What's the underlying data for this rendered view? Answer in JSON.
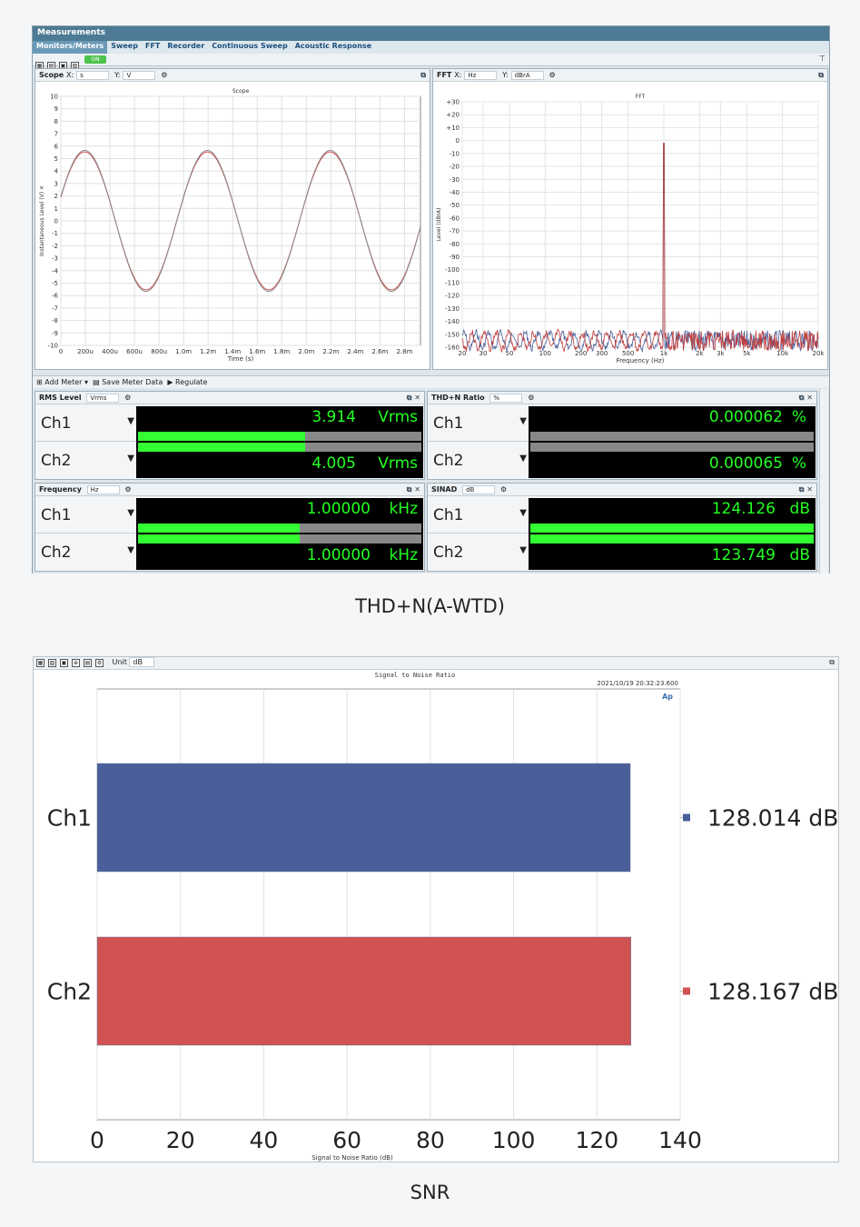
{
  "app": {
    "title": "Measurements",
    "nav_tabs": [
      "Monitors/Meters",
      "Sweep",
      "FFT",
      "Recorder",
      "Continuous Sweep",
      "Acoustic Response"
    ],
    "on_label": "ON"
  },
  "scope": {
    "title": "Scope",
    "x_label": "X:",
    "x_unit": "s",
    "y_label": "Y:",
    "y_unit": "V",
    "chart_title": "Scope",
    "ylabel": "Instantaneous Level (V) ✕",
    "xlabel": "Time (s)",
    "y_ticks": [
      "10",
      "9",
      "8",
      "7",
      "6",
      "5",
      "4",
      "3",
      "2",
      "1",
      "0",
      "-1",
      "-2",
      "-3",
      "-4",
      "-5",
      "-6",
      "-7",
      "-8",
      "-9",
      "-10"
    ],
    "x_ticks": [
      "0",
      "200u",
      "400u",
      "600u",
      "800u",
      "1.0m",
      "1.2m",
      "1.4m",
      "1.6m",
      "1.8m",
      "2.0m",
      "2.2m",
      "2.4m",
      "2.6m",
      "2.8m"
    ]
  },
  "fft": {
    "title": "FFT",
    "x_label": "X:",
    "x_unit": "Hz",
    "y_label": "Y:",
    "y_unit": "dBrA",
    "chart_title": "FFT",
    "ylabel": "Level (dBrA)",
    "xlabel": "Frequency (Hz)",
    "y_ticks": [
      "+30",
      "+20",
      "+10",
      "0",
      "-10",
      "-20",
      "-30",
      "-40",
      "-50",
      "-60",
      "-70",
      "-80",
      "-90",
      "-100",
      "-110",
      "-120",
      "-130",
      "-140",
      "-150",
      "-160"
    ],
    "x_ticks": [
      "20",
      "30",
      "50",
      "100",
      "200",
      "300",
      "500",
      "1k",
      "2k",
      "3k",
      "5k",
      "10k",
      "20k"
    ]
  },
  "meter_toolbar": {
    "add_meter": "Add Meter",
    "save_meter_data": "Save Meter Data",
    "regulate": "Regulate"
  },
  "meters": {
    "rms": {
      "title": "RMS Level",
      "unit_field": "Vrms",
      "ch1_label": "Ch1",
      "ch2_label": "Ch2",
      "ch1_value": "3.914",
      "ch2_value": "4.005",
      "unit": "Vrms",
      "ch1_level": 0.59,
      "ch2_level": 0.59
    },
    "thdn": {
      "title": "THD+N Ratio",
      "unit_field": "%",
      "ch1_label": "Ch1",
      "ch2_label": "Ch2",
      "ch1_value": "0.000062",
      "ch2_value": "0.000065",
      "unit": "%",
      "ch1_level": 0.0,
      "ch2_level": 0.0
    },
    "freq": {
      "title": "Frequency",
      "unit_field": "Hz",
      "ch1_label": "Ch1",
      "ch2_label": "Ch2",
      "ch1_value": "1.00000",
      "ch2_value": "1.00000",
      "unit": "kHz",
      "ch1_level": 0.57,
      "ch2_level": 0.57
    },
    "sinad": {
      "title": "SINAD",
      "unit_field": "dB",
      "ch1_label": "Ch1",
      "ch2_label": "Ch2",
      "ch1_value": "124.126",
      "ch2_value": "123.749",
      "unit": "dB",
      "ch1_level": 1.0,
      "ch2_level": 1.0
    }
  },
  "caption1": "THD+N(A-WTD)",
  "snr_toolbar": {
    "unit_label": "Unit",
    "unit_value": "dB"
  },
  "colors": {
    "ch1": "#4a5f9a",
    "ch2": "#d05252",
    "lcd_text": "#22ff22",
    "titlebar": "#4d7a94"
  },
  "chart_data": {
    "type": "bar",
    "orientation": "horizontal",
    "title": "Signal to Noise Ratio",
    "timestamp": "2021/10/19 20:32:23.600",
    "categories": [
      "Ch1",
      "Ch2"
    ],
    "values": [
      128.014,
      128.167
    ],
    "value_labels": [
      "128.014 dB",
      "128.167 dB"
    ],
    "xlabel": "Signal to Noise Ratio (dB)",
    "xlim": [
      0,
      140
    ],
    "x_ticks": [
      "0",
      "20",
      "40",
      "60",
      "80",
      "100",
      "120",
      "140"
    ],
    "grid": true,
    "legend": "right"
  },
  "caption2": "SNR"
}
